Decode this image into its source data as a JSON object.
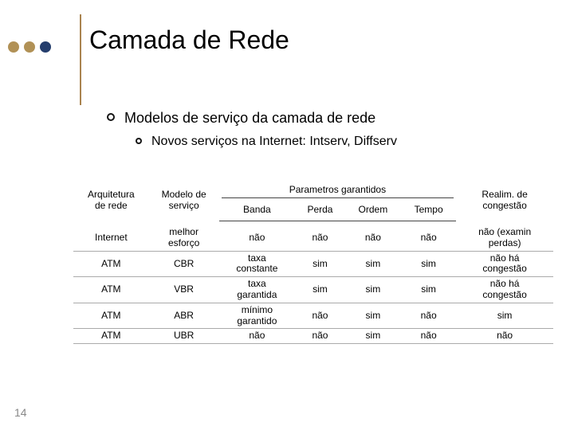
{
  "dot_colors": [
    "#b19156",
    "#b19156",
    "#253e6d"
  ],
  "vline_color": "#a9834f",
  "title": "Camada de Rede",
  "bullets": {
    "level1": "Modelos de serviço da camada de rede",
    "level2": "Novos serviços na Internet: Intserv, Diffserv"
  },
  "table": {
    "header": {
      "arch": "Arquitetura\nde rede",
      "model": "Modelo de\nserviço",
      "params_group": "Parametros garantidos",
      "bw": "Banda",
      "loss": "Perda",
      "order": "Ordem",
      "time": "Tempo",
      "congest": "Realim. de\ncongestão"
    },
    "rows": [
      {
        "arch": "Internet",
        "model": "melhor\nesforço",
        "bw": "não",
        "loss": "não",
        "order": "não",
        "time": "não",
        "congest": "não (examin\nperdas)"
      },
      {
        "arch": "ATM",
        "model": "CBR",
        "bw": "taxa\nconstante",
        "loss": "sim",
        "order": "sim",
        "time": "sim",
        "congest": "não há\ncongestão"
      },
      {
        "arch": "ATM",
        "model": "VBR",
        "bw": "taxa\ngarantida",
        "loss": "sim",
        "order": "sim",
        "time": "sim",
        "congest": "não há\ncongestão"
      },
      {
        "arch": "ATM",
        "model": "ABR",
        "bw": "mínimo\ngarantido",
        "loss": "não",
        "order": "sim",
        "time": "não",
        "congest": "sim"
      },
      {
        "arch": "ATM",
        "model": "UBR",
        "bw": "não",
        "loss": "não",
        "order": "sim",
        "time": "não",
        "congest": "não"
      }
    ]
  },
  "page_number": "14",
  "text_color": "#000000",
  "header_text_color": "#000000",
  "border_color": "#444444",
  "row_border_color": "#aaaaaa",
  "bg_color": "#ffffff"
}
